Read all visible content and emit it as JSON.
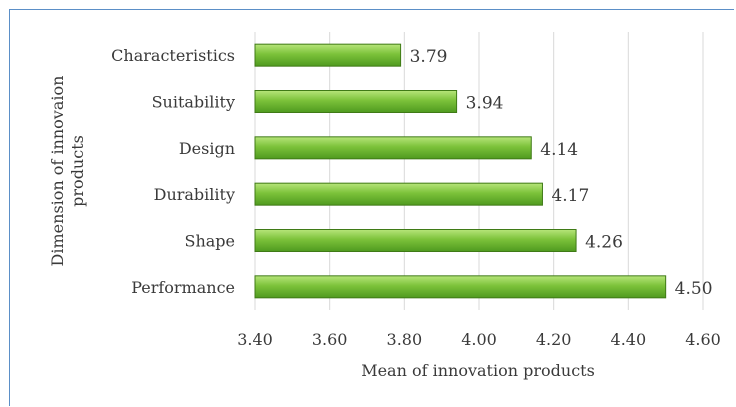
{
  "chart_data": {
    "type": "bar",
    "orientation": "horizontal",
    "categories": [
      "Characteristics",
      "Suitability",
      "Design",
      "Durability",
      "Shape",
      "Performance"
    ],
    "values": [
      3.79,
      3.94,
      4.14,
      4.17,
      4.26,
      4.5
    ],
    "value_labels": [
      "3.79",
      "3.94",
      "4.14",
      "4.17",
      "4.26",
      "4.50"
    ],
    "xlabel": "Mean of innovation products",
    "ylabel_lines": [
      "Dimension of innovaion",
      "products"
    ],
    "xlim": [
      3.4,
      4.6
    ],
    "xticks": [
      3.4,
      3.6,
      3.8,
      4.0,
      4.2,
      4.4,
      4.6
    ],
    "xtick_labels": [
      "3.40",
      "3.60",
      "3.80",
      "4.00",
      "4.20",
      "4.40",
      "4.60"
    ],
    "grid": "vertical",
    "legend": "none",
    "bar_color": "#7cc23a",
    "bar_edge_color": "#3f7a16",
    "grid_color": "#d9d9d9",
    "frame_color": "#5b8fc7"
  }
}
